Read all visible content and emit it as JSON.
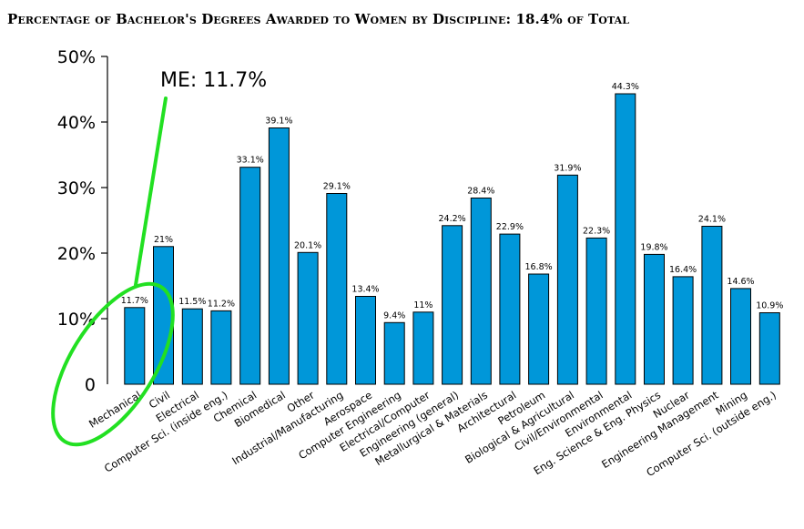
{
  "chart_data": {
    "type": "bar",
    "title": "Percentage of Bachelor's Degrees Awarded to Women by Discipline: 18.4% of Total",
    "xlabel": "",
    "ylabel": "",
    "ylim": [
      0,
      50
    ],
    "yticks": [
      "0",
      "10%",
      "20%",
      "30%",
      "40%",
      "50%"
    ],
    "grid": false,
    "bar_color": "#0097d9",
    "highlight_color": "#22e022",
    "annotation": "ME: 11.7%",
    "categories": [
      "Mechanical",
      "Civil",
      "Electrical",
      "Computer Sci. (inside eng.)",
      "Chemical",
      "Biomedical",
      "Other",
      "Industrial/Manufacturing",
      "Aerospace",
      "Computer Engineering",
      "Electrical/Computer",
      "Engineering (general)",
      "Metallurgical & Materials",
      "Architectural",
      "Petroleum",
      "Biological & Agricultural",
      "Civil/Environmental",
      "Environmental",
      "Eng. Science & Eng. Physics",
      "Nuclear",
      "Engineering Management",
      "Mining",
      "Computer Sci. (outside eng.)"
    ],
    "values": [
      11.7,
      21,
      11.5,
      11.2,
      33.1,
      39.1,
      20.1,
      29.1,
      13.4,
      9.4,
      11,
      24.2,
      28.4,
      22.9,
      16.8,
      31.9,
      22.3,
      44.3,
      19.8,
      16.4,
      24.1,
      14.6,
      10.9
    ],
    "data_labels": [
      "11.7%",
      "21%",
      "11.5%",
      "11.2%",
      "33.1%",
      "39.1%",
      "20.1%",
      "29.1%",
      "13.4%",
      "9.4%",
      "11%",
      "24.2%",
      "28.4%",
      "22.9%",
      "16.8%",
      "31.9%",
      "22.3%",
      "44.3%",
      "19.8%",
      "16.4%",
      "24.1%",
      "14.6%",
      "10.9%"
    ]
  }
}
